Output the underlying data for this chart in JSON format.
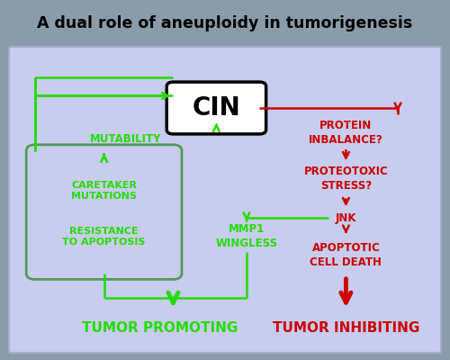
{
  "title": "A dual role of aneuploidy in tumorigenesis",
  "title_bg": "#8a9caa",
  "main_bg": "#c8ccee",
  "green": "#22dd00",
  "red": "#cc0000",
  "black": "#000000",
  "white": "#ffffff",
  "gray_green": "#668866",
  "cin_text": "CIN",
  "mutability_text": "MUTABILITY",
  "caretaker_text": "CARETAKER\nMUTATIONS\n\nRESISTANCE\nTO APOPTOSIS",
  "protein_text": "PROTEIN\nINBALANCE?",
  "proteotoxic_text": "PROTEOTOXIC\nSTRESS?",
  "jnk_text": "JNK",
  "apoptotic_text": "APOPTOTIC\nCELL DEATH",
  "mmp1_text": "MMP1\nWINGLESS",
  "tumor_promoting_text": "TUMOR PROMOTING",
  "tumor_inhibiting_text": "TUMOR INHIBITING"
}
